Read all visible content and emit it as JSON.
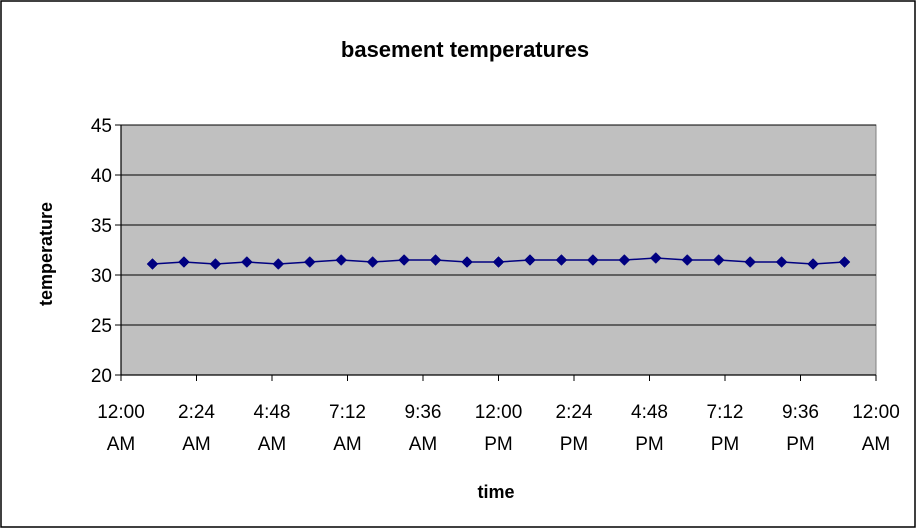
{
  "chart_data": {
    "type": "line",
    "title": "basement temperatures",
    "xlabel": "time",
    "ylabel": "temperature",
    "ylim": [
      20,
      45
    ],
    "yticks": [
      20,
      25,
      30,
      35,
      40,
      45
    ],
    "xlim_hours": [
      0,
      24
    ],
    "xticks": [
      {
        "line1": "12:00",
        "line2": "AM"
      },
      {
        "line1": "2:24",
        "line2": "AM"
      },
      {
        "line1": "4:48",
        "line2": "AM"
      },
      {
        "line1": "7:12",
        "line2": "AM"
      },
      {
        "line1": "9:36",
        "line2": "AM"
      },
      {
        "line1": "12:00",
        "line2": "PM"
      },
      {
        "line1": "2:24",
        "line2": "PM"
      },
      {
        "line1": "4:48",
        "line2": "PM"
      },
      {
        "line1": "7:12",
        "line2": "PM"
      },
      {
        "line1": "9:36",
        "line2": "PM"
      },
      {
        "line1": "12:00",
        "line2": "AM"
      }
    ],
    "grid": true,
    "legend": "none",
    "series": [
      {
        "color": "#000080",
        "marker": "diamond",
        "x": [
          "1:00 AM",
          "2:00 AM",
          "3:00 AM",
          "4:00 AM",
          "5:00 AM",
          "6:00 AM",
          "7:00 AM",
          "8:00 AM",
          "9:00 AM",
          "10:00 AM",
          "11:00 AM",
          "12:00 PM",
          "1:00 PM",
          "2:00 PM",
          "3:00 PM",
          "4:00 PM",
          "5:00 PM",
          "6:00 PM",
          "7:00 PM",
          "8:00 PM",
          "9:00 PM",
          "10:00 PM",
          "11:00 PM"
        ],
        "y": [
          31.1,
          31.3,
          31.1,
          31.3,
          31.1,
          31.3,
          31.5,
          31.3,
          31.5,
          31.5,
          31.3,
          31.3,
          31.5,
          31.5,
          31.5,
          31.5,
          31.7,
          31.5,
          31.5,
          31.3,
          31.3,
          31.1,
          31.3
        ]
      }
    ],
    "colors": {
      "plot_background": "#c0c0c0",
      "gridline": "#000000",
      "series_line": "#000080"
    }
  }
}
